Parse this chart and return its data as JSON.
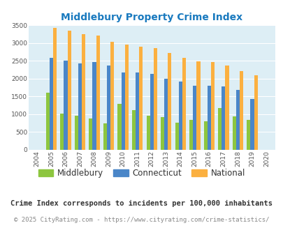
{
  "title": "Middlebury Property Crime Index",
  "years": [
    2004,
    2005,
    2006,
    2007,
    2008,
    2009,
    2010,
    2011,
    2012,
    2013,
    2014,
    2015,
    2016,
    2017,
    2018,
    2019,
    2020
  ],
  "middlebury": [
    0,
    1600,
    1020,
    960,
    870,
    740,
    1290,
    1110,
    950,
    920,
    760,
    830,
    800,
    1170,
    930,
    840,
    0
  ],
  "connecticut": [
    0,
    2590,
    2510,
    2430,
    2470,
    2360,
    2180,
    2170,
    2140,
    2000,
    1920,
    1800,
    1800,
    1770,
    1670,
    1420,
    0
  ],
  "national": [
    0,
    3420,
    3340,
    3260,
    3210,
    3040,
    2950,
    2900,
    2850,
    2730,
    2590,
    2490,
    2460,
    2360,
    2200,
    2100,
    0
  ],
  "bar_width": 0.25,
  "colors": {
    "middlebury": "#8dc63f",
    "connecticut": "#4a86c8",
    "national": "#fbb040"
  },
  "ylim": [
    0,
    3500
  ],
  "yticks": [
    0,
    500,
    1000,
    1500,
    2000,
    2500,
    3000,
    3500
  ],
  "background_color": "#ddeef5",
  "title_color": "#1a7abf",
  "legend_labels": [
    "Middlebury",
    "Connecticut",
    "National"
  ],
  "footnote1": "Crime Index corresponds to incidents per 100,000 inhabitants",
  "footnote2": "© 2025 CityRating.com - https://www.cityrating.com/crime-statistics/",
  "title_fontsize": 10,
  "tick_fontsize": 6.5,
  "legend_fontsize": 8.5,
  "footnote1_fontsize": 7.5,
  "footnote2_fontsize": 6.5
}
